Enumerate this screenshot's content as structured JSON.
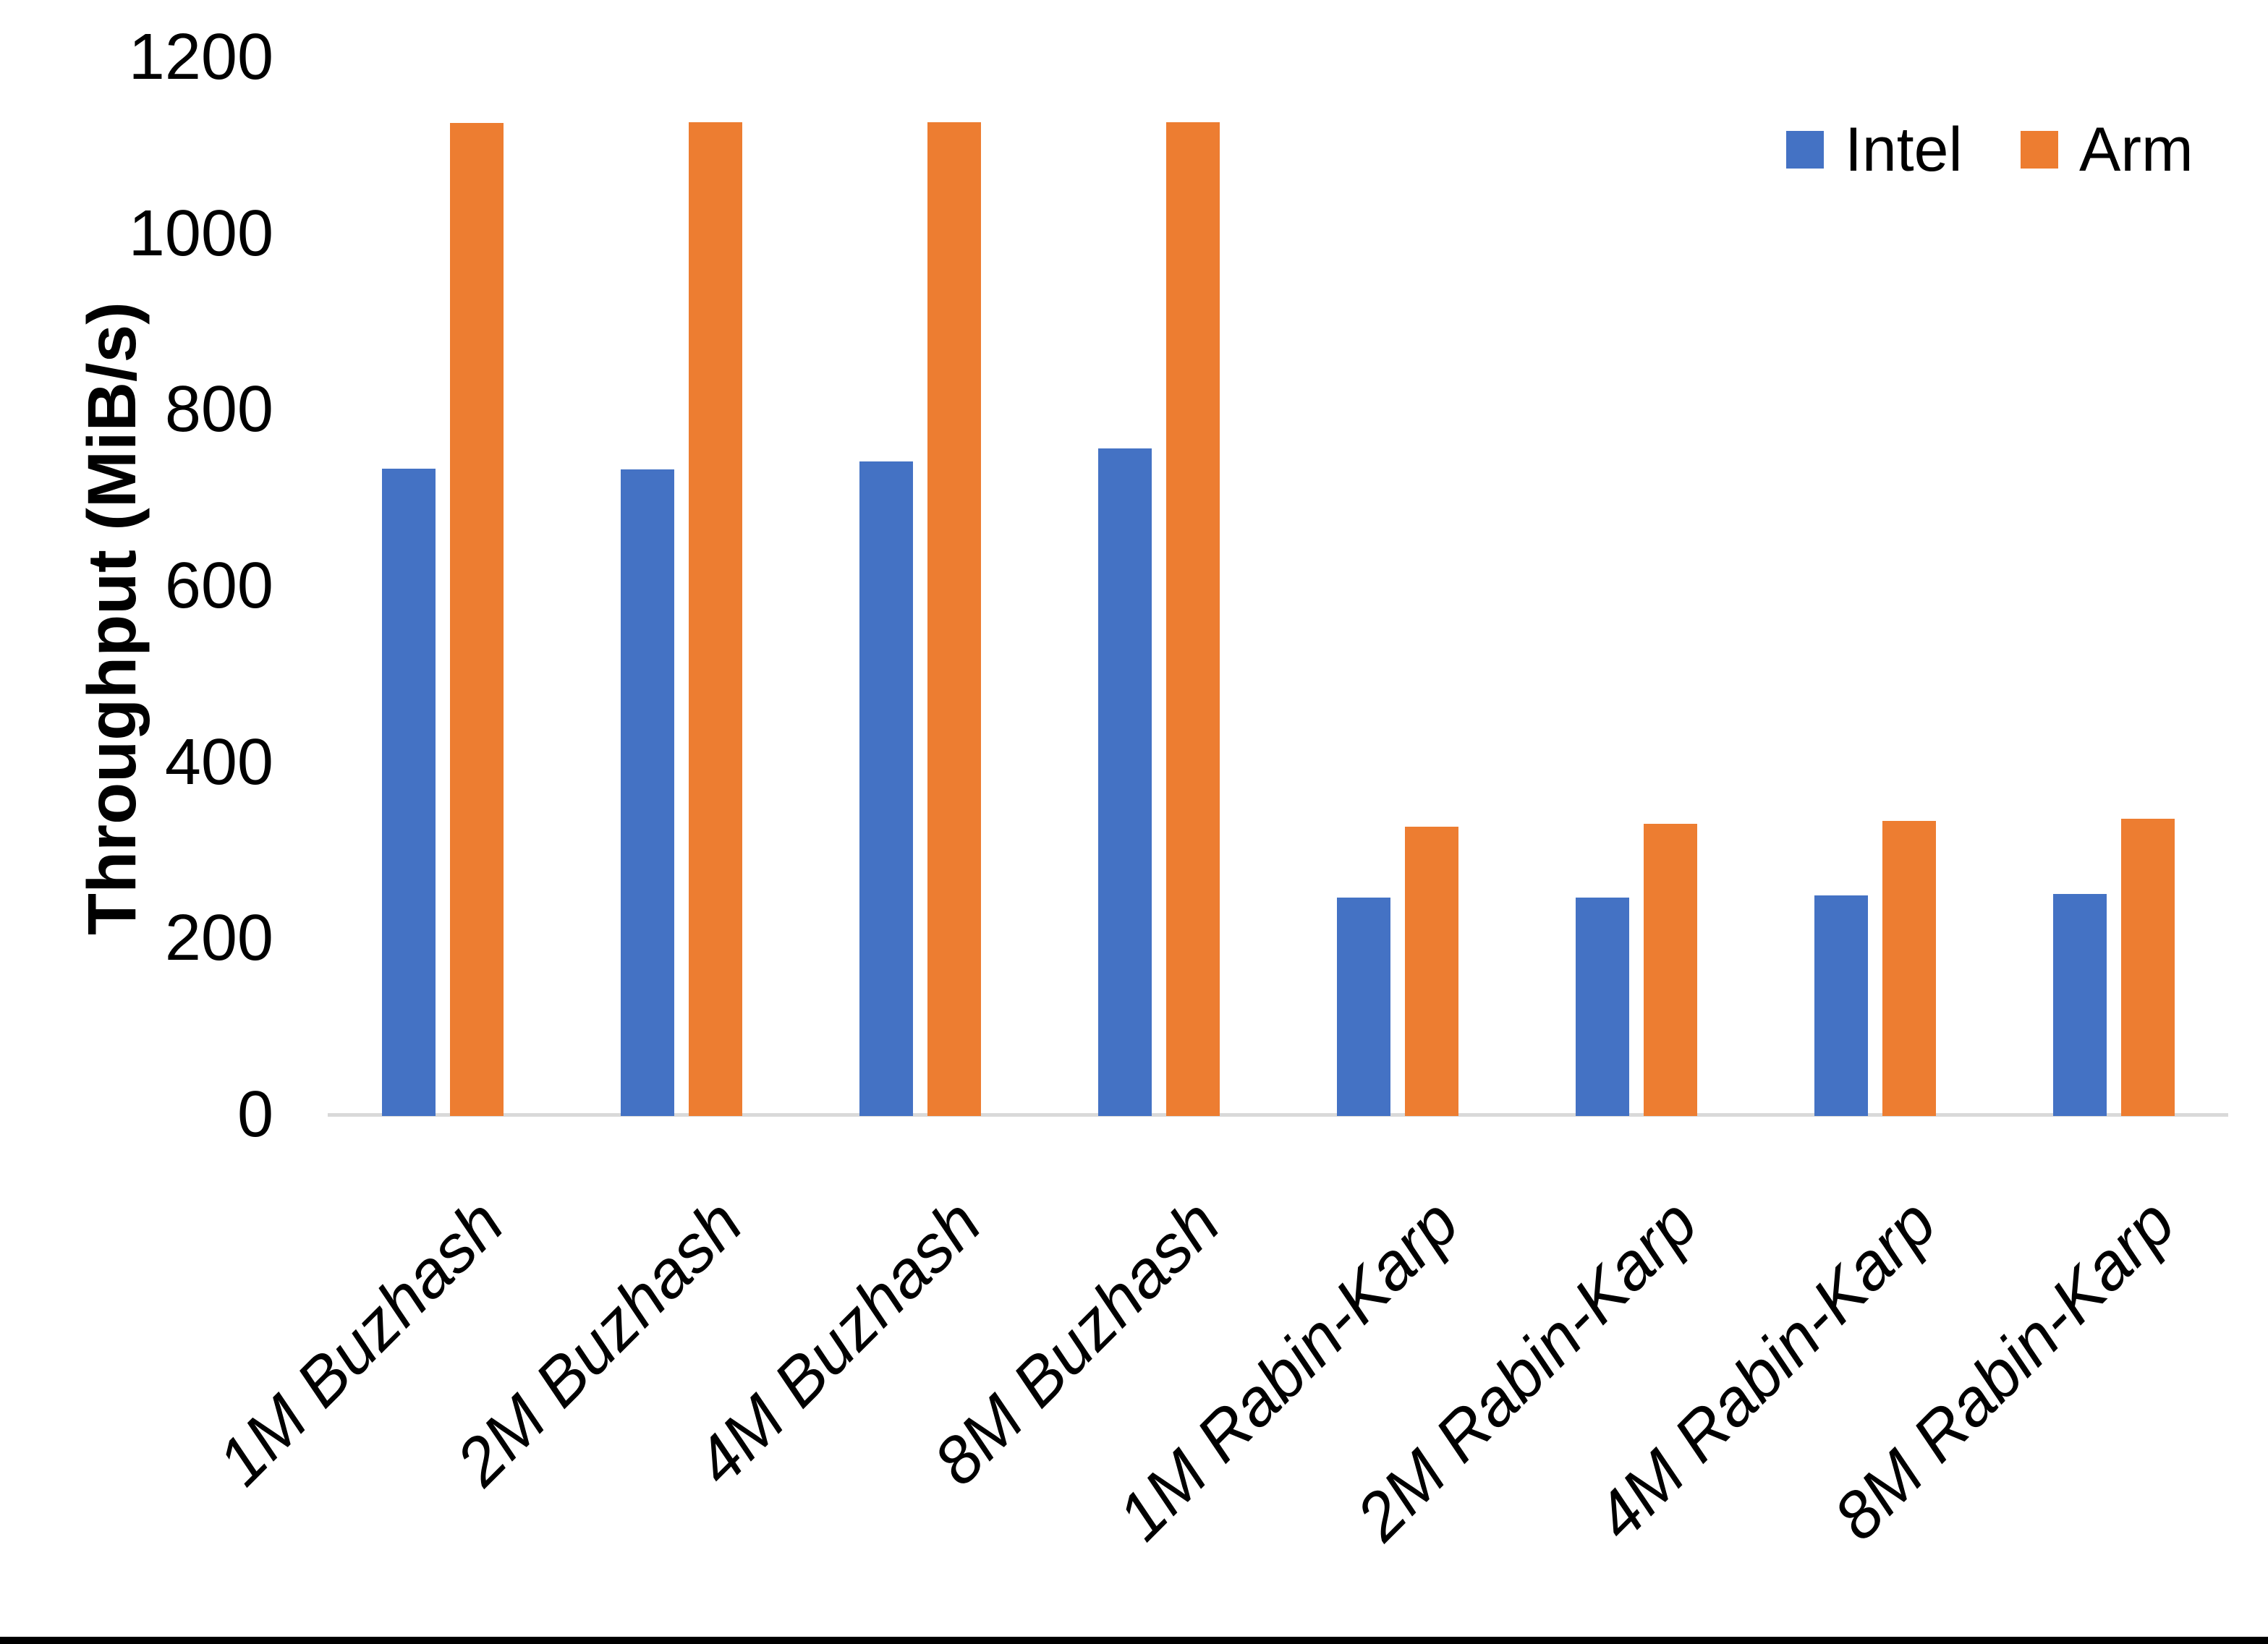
{
  "chart_data": {
    "type": "bar",
    "title": "",
    "xlabel": "",
    "ylabel": "Throughput (MiB/s)",
    "ylim": [
      0,
      1200
    ],
    "yticks": [
      1200,
      1000,
      800,
      600,
      400,
      200,
      0
    ],
    "grid": false,
    "legend_position": "top-right",
    "categories": [
      "1M Buzhash",
      "2M Buzhash",
      "4M Buzhash",
      "8M Buzhash",
      "1M Rabin-Karp",
      "2M Rabin-Karp",
      "4M Rabin-Karp",
      "8M Rabin-Karp"
    ],
    "series": [
      {
        "name": "Intel",
        "color": "#4472C4",
        "values": [
          733,
          732,
          741,
          756,
          246,
          246,
          249,
          250
        ]
      },
      {
        "name": "Arm",
        "color": "#ED7D31",
        "values": [
          1125,
          1126,
          1126,
          1126,
          327,
          330,
          333,
          336
        ]
      }
    ]
  },
  "colors": {
    "axis_line": "#D9D9D9",
    "text": "#000000",
    "background": "#FFFFFF",
    "bottom_border": "#000000"
  }
}
